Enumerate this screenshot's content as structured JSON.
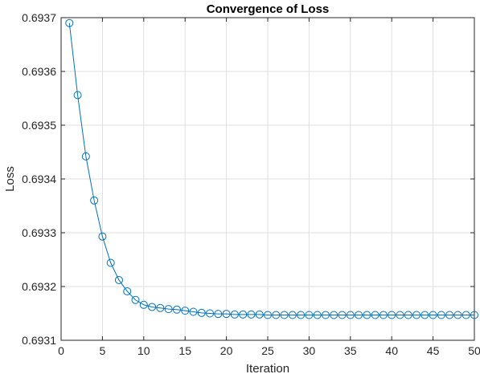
{
  "chart_data": {
    "type": "line",
    "title": "Convergence of Loss",
    "xlabel": "Iteration",
    "ylabel": "Loss",
    "xlim": [
      0,
      50
    ],
    "ylim": [
      0.6931,
      0.6937
    ],
    "x_ticks": [
      0,
      5,
      10,
      15,
      20,
      25,
      30,
      35,
      40,
      45,
      50
    ],
    "y_ticks": [
      "0.6931",
      "0.6932",
      "0.6933",
      "0.6934",
      "0.6935",
      "0.6936",
      "0.6937"
    ],
    "grid": true,
    "marker": "circle",
    "line_color": "#0072BD",
    "series": [
      {
        "x": [
          1,
          2,
          3,
          4,
          5,
          6,
          7,
          8,
          9,
          10,
          11,
          12,
          13,
          14,
          15,
          16,
          17,
          18,
          19,
          20,
          21,
          22,
          23,
          24,
          25,
          26,
          27,
          28,
          29,
          30,
          31,
          32,
          33,
          34,
          35,
          36,
          37,
          38,
          39,
          40,
          41,
          42,
          43,
          44,
          45,
          46,
          47,
          48,
          49,
          50
        ],
        "values": [
          0.69369,
          0.693556,
          0.693442,
          0.69336,
          0.693293,
          0.693244,
          0.693212,
          0.693191,
          0.693175,
          0.693166,
          0.693162,
          0.69316,
          0.693158,
          0.693157,
          0.693155,
          0.693153,
          0.693151,
          0.69315,
          0.693149,
          0.693149,
          0.693148,
          0.693148,
          0.693148,
          0.693148,
          0.693147,
          0.693147,
          0.693147,
          0.693147,
          0.693147,
          0.693147,
          0.693147,
          0.693147,
          0.693147,
          0.693147,
          0.693147,
          0.693147,
          0.693147,
          0.693147,
          0.693147,
          0.693147,
          0.693147,
          0.693147,
          0.693147,
          0.693147,
          0.693147,
          0.693147,
          0.693147,
          0.693147,
          0.693147,
          0.693147
        ]
      }
    ]
  }
}
